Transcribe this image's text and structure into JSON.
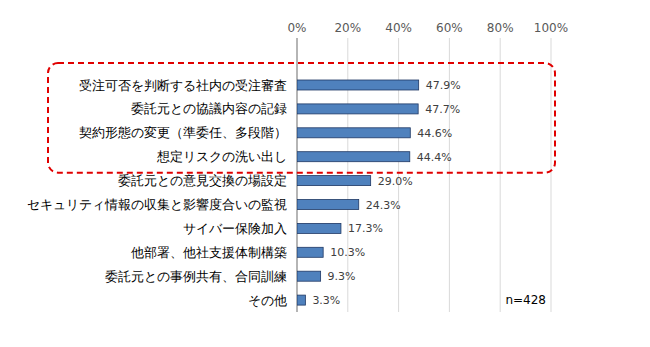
{
  "chart_data": {
    "type": "bar",
    "orientation": "horizontal",
    "categories": [
      "受注可否を判断する社内の受注審査",
      "委託元との協議内容の記録",
      "契約形態の変更（準委任、多段階）",
      "想定リスクの洗い出し",
      "委託元との意見交換の場設定",
      "セキュリティ情報の収集と影響度合いの監視",
      "サイバー保険加入",
      "他部署、他社支援体制構築",
      "委託元との事例共有、合同訓練",
      "その他"
    ],
    "values": [
      47.9,
      47.7,
      44.6,
      44.4,
      29.0,
      24.3,
      17.3,
      10.3,
      9.3,
      3.3
    ],
    "value_labels": [
      "47.9%",
      "47.7%",
      "44.6%",
      "44.4%",
      "29.0%",
      "24.3%",
      "17.3%",
      "10.3%",
      "9.3%",
      "3.3%"
    ],
    "color": "#4f81bd",
    "xlim": [
      0,
      100
    ],
    "xticks": [
      {
        "value": 0,
        "label": "0%"
      },
      {
        "value": 20,
        "label": "20%"
      },
      {
        "value": 40,
        "label": "40%"
      },
      {
        "value": 60,
        "label": "60%"
      },
      {
        "value": 80,
        "label": "80%"
      },
      {
        "value": 100,
        "label": "100%"
      }
    ],
    "grid": true,
    "data_labels": true,
    "annotations": [
      "n=428"
    ]
  }
}
